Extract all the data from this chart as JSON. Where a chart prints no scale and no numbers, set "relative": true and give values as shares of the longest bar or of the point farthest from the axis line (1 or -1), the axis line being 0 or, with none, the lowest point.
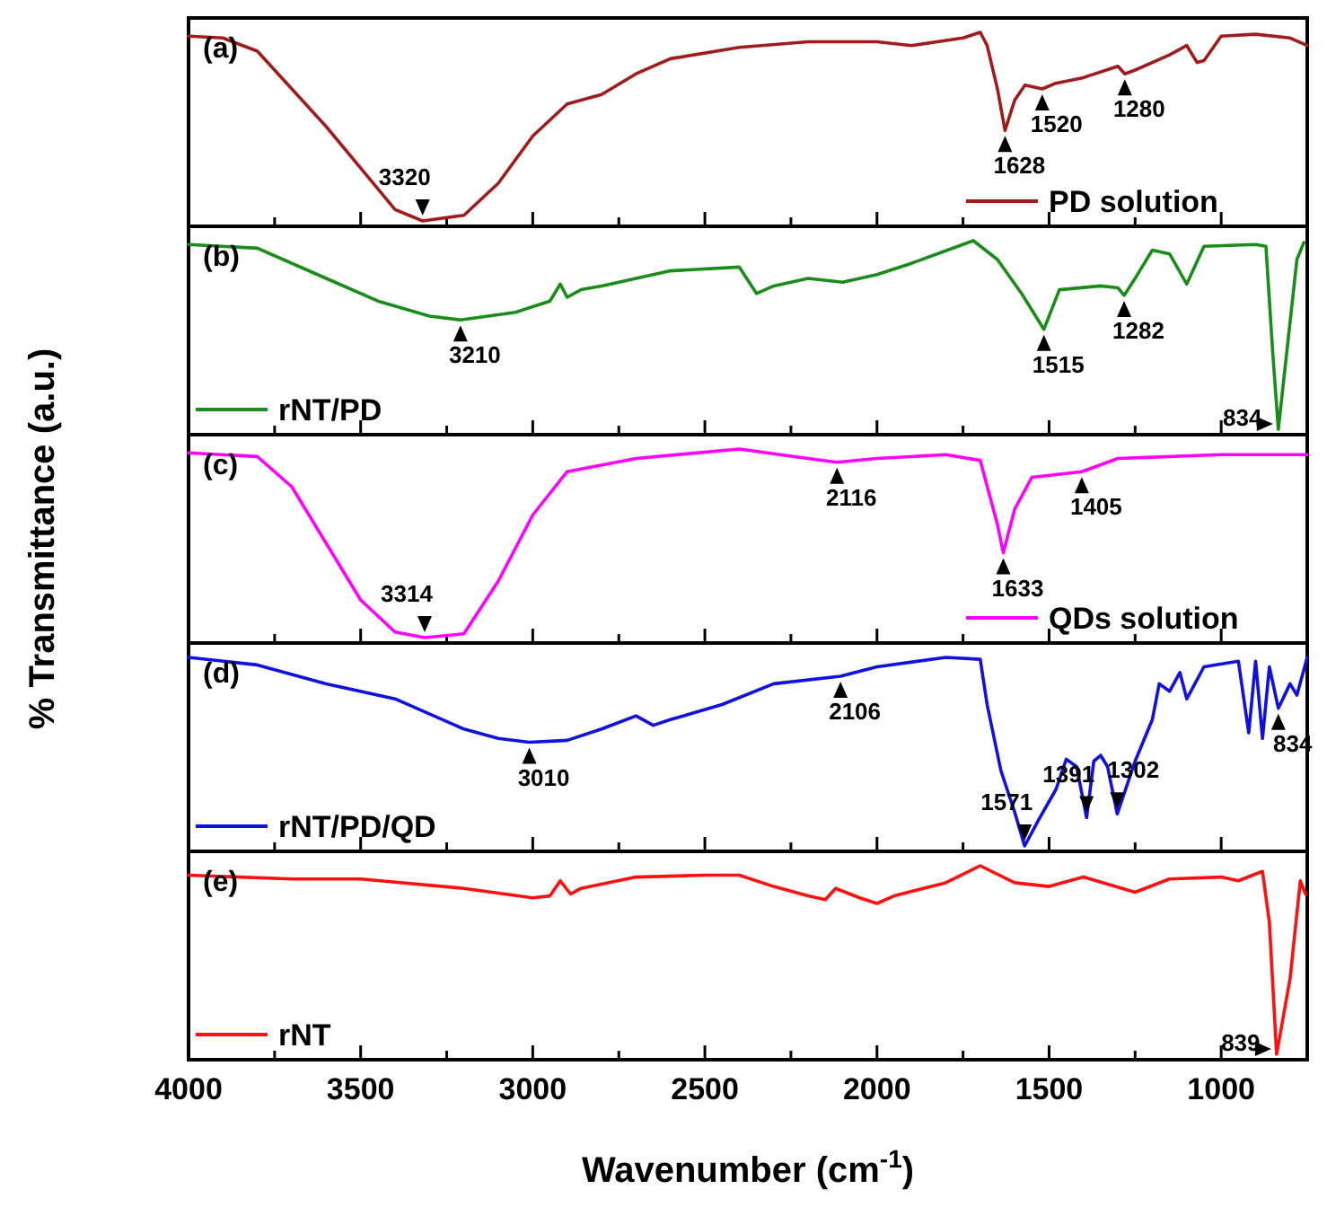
{
  "chart_data": [
    {
      "type": "line",
      "title": "(a)",
      "relative": true,
      "ylabel": "% Transmittance (a.u.)",
      "xlim": [
        4000,
        750
      ],
      "tick_labels": false,
      "legend": "bottom right",
      "xticks": [
        4000,
        {
          "value": 3750,
          "label": null
        },
        3500,
        {
          "value": 3250,
          "label": null
        },
        3000,
        {
          "value": 2750,
          "label": null
        },
        2500,
        {
          "value": 2250,
          "label": null
        },
        2000,
        {
          "value": 1750,
          "label": null
        },
        1500,
        {
          "value": 1250,
          "label": null
        },
        1000
      ],
      "series": [
        {
          "name": "PD solution",
          "color": "#a01c1c",
          "x": [
            4000,
            3900,
            3800,
            3700,
            3600,
            3500,
            3400,
            3320,
            3200,
            3100,
            3000,
            2900,
            2800,
            2700,
            2600,
            2400,
            2200,
            2000,
            1900,
            1750,
            1700,
            1680,
            1650,
            1628,
            1600,
            1570,
            1520,
            1480,
            1400,
            1300,
            1290,
            1280,
            1250,
            1150,
            1100,
            1070,
            1050,
            1000,
            900,
            800,
            750
          ],
          "values": [
            0.98,
            0.97,
            0.9,
            0.7,
            0.5,
            0.28,
            0.06,
            0,
            0.03,
            0.2,
            0.45,
            0.62,
            0.67,
            0.78,
            0.86,
            0.92,
            0.95,
            0.95,
            0.93,
            0.97,
            1,
            0.93,
            0.7,
            0.48,
            0.64,
            0.72,
            0.7,
            0.73,
            0.76,
            0.82,
            0.8,
            0.78,
            0.8,
            0.88,
            0.93,
            0.84,
            0.85,
            0.98,
            0.99,
            0.97,
            0.93
          ]
        }
      ],
      "annotations": [
        {
          "text": "3320",
          "x": 3320,
          "y": 0
        },
        {
          "text": "1628",
          "x": 1628,
          "y": 0.48
        },
        {
          "text": "1520",
          "x": 1520,
          "y": 0.7
        },
        {
          "text": "1280",
          "x": 1280,
          "y": 0.78
        }
      ]
    },
    {
      "type": "line",
      "title": "(b)",
      "relative": true,
      "xlim": [
        4000,
        750
      ],
      "tick_labels": false,
      "legend": "bottom left",
      "xticks": [
        4000,
        {
          "value": 3750,
          "label": null
        },
        3500,
        {
          "value": 3250,
          "label": null
        },
        3000,
        {
          "value": 2750,
          "label": null
        },
        2500,
        {
          "value": 2250,
          "label": null
        },
        2000,
        {
          "value": 1750,
          "label": null
        },
        1500,
        {
          "value": 1250,
          "label": null
        },
        1000
      ],
      "series": [
        {
          "name": "rNT/PD",
          "color": "#1a8c1a",
          "x": [
            4000,
            3800,
            3600,
            3450,
            3300,
            3210,
            3050,
            2950,
            2920,
            2900,
            2860,
            2800,
            2600,
            2400,
            2350,
            2300,
            2200,
            2100,
            2000,
            1900,
            1720,
            1650,
            1580,
            1515,
            1470,
            1350,
            1300,
            1282,
            1250,
            1200,
            1150,
            1100,
            1050,
            900,
            870,
            850,
            834,
            810,
            780,
            760
          ],
          "values": [
            0.98,
            0.96,
            0.8,
            0.68,
            0.6,
            0.58,
            0.62,
            0.68,
            0.77,
            0.7,
            0.74,
            0.76,
            0.84,
            0.86,
            0.72,
            0.76,
            0.8,
            0.78,
            0.82,
            0.88,
            1,
            0.9,
            0.72,
            0.53,
            0.74,
            0.76,
            0.75,
            0.71,
            0.8,
            0.95,
            0.93,
            0.77,
            0.97,
            0.98,
            0.97,
            0.4,
            0,
            0.4,
            0.9,
            0.99
          ]
        }
      ],
      "annotations": [
        {
          "text": "3210",
          "x": 3210,
          "y": 0.58
        },
        {
          "text": "1515",
          "x": 1515,
          "y": 0.53
        },
        {
          "text": "1282",
          "x": 1282,
          "y": 0.71
        },
        {
          "text": "834",
          "x": 834,
          "y": 0
        }
      ]
    },
    {
      "type": "line",
      "title": "(c)",
      "relative": true,
      "xlim": [
        4000,
        750
      ],
      "tick_labels": false,
      "legend": "bottom right",
      "xticks": [
        4000,
        {
          "value": 3750,
          "label": null
        },
        3500,
        {
          "value": 3250,
          "label": null
        },
        3000,
        {
          "value": 2750,
          "label": null
        },
        2500,
        {
          "value": 2250,
          "label": null
        },
        2000,
        {
          "value": 1750,
          "label": null
        },
        1500,
        {
          "value": 1250,
          "label": null
        },
        1000
      ],
      "series": [
        {
          "name": "QDs solution",
          "color": "#ff00ff",
          "x": [
            4000,
            3800,
            3700,
            3600,
            3500,
            3400,
            3314,
            3200,
            3100,
            3000,
            2900,
            2700,
            2400,
            2200,
            2116,
            2000,
            1800,
            1700,
            1650,
            1633,
            1600,
            1550,
            1405,
            1300,
            1000,
            750
          ],
          "values": [
            0.98,
            0.96,
            0.8,
            0.5,
            0.2,
            0.03,
            0,
            0.02,
            0.3,
            0.65,
            0.88,
            0.95,
            1,
            0.95,
            0.93,
            0.95,
            0.97,
            0.94,
            0.6,
            0.45,
            0.68,
            0.85,
            0.88,
            0.95,
            0.97,
            0.97
          ]
        }
      ],
      "annotations": [
        {
          "text": "3314",
          "x": 3314,
          "y": 0
        },
        {
          "text": "2116",
          "x": 2116,
          "y": 0.93
        },
        {
          "text": "1633",
          "x": 1633,
          "y": 0.45
        },
        {
          "text": "1405",
          "x": 1405,
          "y": 0.88
        }
      ]
    },
    {
      "type": "line",
      "title": "(d)",
      "relative": true,
      "xlim": [
        4000,
        750
      ],
      "tick_labels": false,
      "legend": "bottom left",
      "xticks": [
        4000,
        {
          "value": 3750,
          "label": null
        },
        3500,
        {
          "value": 3250,
          "label": null
        },
        3000,
        {
          "value": 2750,
          "label": null
        },
        2500,
        {
          "value": 2250,
          "label": null
        },
        2000,
        {
          "value": 1750,
          "label": null
        },
        1500,
        {
          "value": 1250,
          "label": null
        },
        1000
      ],
      "series": [
        {
          "name": "rNT/PD/QD",
          "color": "#1010e0",
          "x": [
            4000,
            3800,
            3600,
            3400,
            3200,
            3100,
            3010,
            2900,
            2800,
            2700,
            2650,
            2600,
            2450,
            2300,
            2106,
            2000,
            1800,
            1700,
            1680,
            1640,
            1600,
            1571,
            1530,
            1480,
            1450,
            1420,
            1391,
            1370,
            1350,
            1330,
            1302,
            1250,
            1200,
            1180,
            1150,
            1120,
            1100,
            1050,
            950,
            920,
            900,
            880,
            860,
            834,
            800,
            780,
            750
          ],
          "values": [
            1,
            0.96,
            0.86,
            0.78,
            0.62,
            0.57,
            0.55,
            0.56,
            0.62,
            0.69,
            0.64,
            0.67,
            0.75,
            0.86,
            0.9,
            0.95,
            1,
            0.99,
            0.75,
            0.4,
            0.18,
            0,
            0.14,
            0.3,
            0.46,
            0.42,
            0.15,
            0.45,
            0.48,
            0.42,
            0.17,
            0.45,
            0.67,
            0.86,
            0.82,
            0.92,
            0.78,
            0.95,
            0.98,
            0.6,
            0.98,
            0.57,
            0.95,
            0.73,
            0.86,
            0.8,
            1
          ]
        }
      ],
      "annotations": [
        {
          "text": "3010",
          "x": 3010,
          "y": 0.55
        },
        {
          "text": "2106",
          "x": 2106,
          "y": 0.9
        },
        {
          "text": "1571",
          "x": 1571,
          "y": 0
        },
        {
          "text": "1391",
          "x": 1391,
          "y": 0.15
        },
        {
          "text": "1302",
          "x": 1302,
          "y": 0.17
        },
        {
          "text": "834",
          "x": 834,
          "y": 0.73
        }
      ]
    },
    {
      "type": "line",
      "title": "(e)",
      "relative": true,
      "xlabel": "Wavenumber (cm$^{-1}$)",
      "xlim": [
        4000,
        750
      ],
      "tick_labels": "x",
      "legend": "bottom left",
      "xticks": [
        4000,
        {
          "value": 3750,
          "label": null
        },
        3500,
        {
          "value": 3250,
          "label": null
        },
        3000,
        {
          "value": 2750,
          "label": null
        },
        2500,
        {
          "value": 2250,
          "label": null
        },
        2000,
        {
          "value": 1750,
          "label": null
        },
        1500,
        {
          "value": 1250,
          "label": null
        },
        1000
      ],
      "series": [
        {
          "name": "rNT",
          "color": "#ff1010",
          "x": [
            4000,
            3700,
            3500,
            3200,
            3000,
            2950,
            2920,
            2890,
            2860,
            2700,
            2500,
            2400,
            2300,
            2200,
            2150,
            2120,
            2050,
            2000,
            1950,
            1800,
            1700,
            1600,
            1500,
            1400,
            1250,
            1150,
            1000,
            950,
            880,
            860,
            839,
            800,
            770,
            755
          ],
          "values": [
            0.95,
            0.93,
            0.93,
            0.88,
            0.83,
            0.84,
            0.92,
            0.85,
            0.88,
            0.94,
            0.95,
            0.95,
            0.89,
            0.84,
            0.82,
            0.88,
            0.83,
            0.8,
            0.84,
            0.91,
            1,
            0.91,
            0.89,
            0.94,
            0.86,
            0.93,
            0.94,
            0.92,
            0.97,
            0.7,
            0,
            0.4,
            0.92,
            0.85
          ]
        }
      ],
      "annotations": [
        {
          "text": "839",
          "x": 839,
          "y": 0
        }
      ]
    }
  ]
}
